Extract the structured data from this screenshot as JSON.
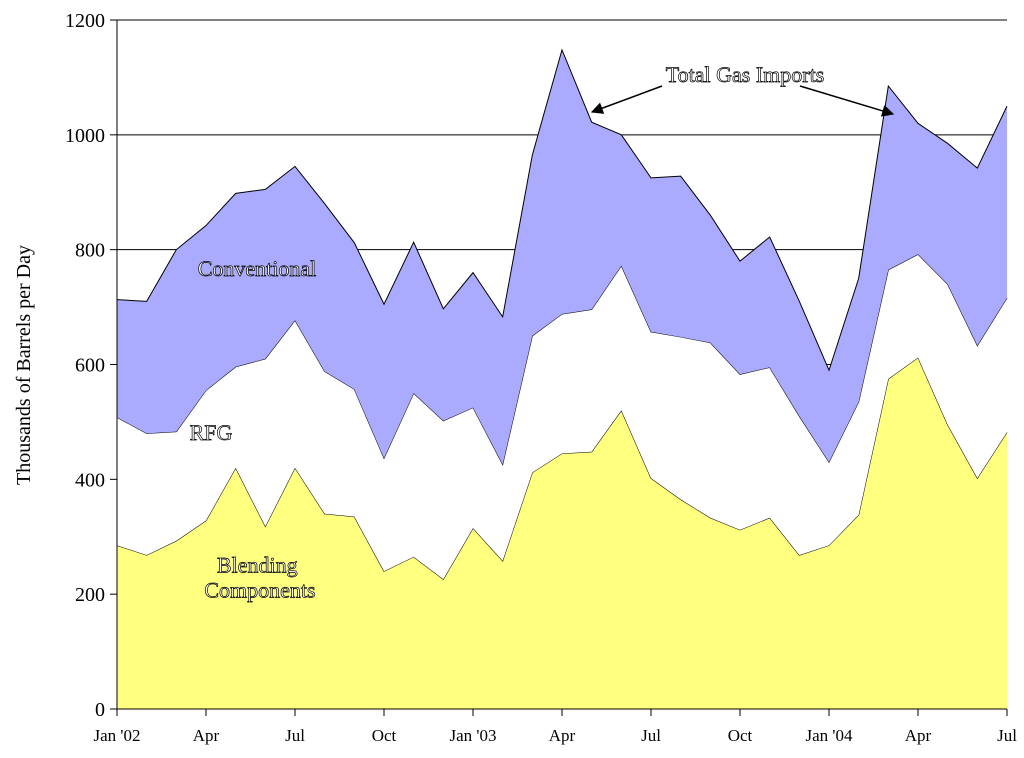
{
  "chart_data": {
    "type": "stacked_area",
    "y_axis_label": "Thousands of Barrels per Day",
    "categories": [
      "Jan '02",
      null,
      null,
      "Apr",
      null,
      null,
      "Jul",
      null,
      null,
      "Oct",
      null,
      null,
      "Jan '03",
      null,
      null,
      "Apr",
      null,
      null,
      "Jul",
      null,
      null,
      "Oct",
      null,
      null,
      "Jan '04",
      null,
      null,
      "Apr",
      null,
      null,
      "Jul"
    ],
    "series": [
      {
        "name": "Blending Components",
        "color": "#ffff80",
        "values": [
          285,
          268,
          293,
          328,
          420,
          318,
          420,
          340,
          335,
          240,
          265,
          226,
          315,
          258,
          412,
          445,
          448,
          520,
          402,
          365,
          333,
          312,
          333,
          268,
          285,
          338,
          575,
          612,
          495,
          402,
          482
        ]
      },
      {
        "name": "RFG",
        "color": "#ffffff",
        "values": [
          223,
          212,
          190,
          227,
          176,
          292,
          257,
          248,
          222,
          197,
          285,
          276,
          210,
          168,
          238,
          243,
          248,
          252,
          255,
          283,
          305,
          271,
          262,
          242,
          145,
          197,
          190,
          180,
          245,
          231,
          234
        ]
      },
      {
        "name": "Conventional",
        "color": "#aaaaff",
        "values": [
          205,
          230,
          317,
          287,
          302,
          295,
          268,
          292,
          255,
          268,
          263,
          195,
          235,
          257,
          315,
          460,
          326,
          228,
          268,
          280,
          222,
          197,
          227,
          200,
          160,
          215,
          320,
          228,
          245,
          309,
          334
        ]
      }
    ],
    "annotation": "Total Gas Imports",
    "ylim": [
      0,
      1200
    ],
    "yticks": [
      0,
      200,
      400,
      600,
      800,
      1000,
      1200
    ],
    "grid": true
  }
}
